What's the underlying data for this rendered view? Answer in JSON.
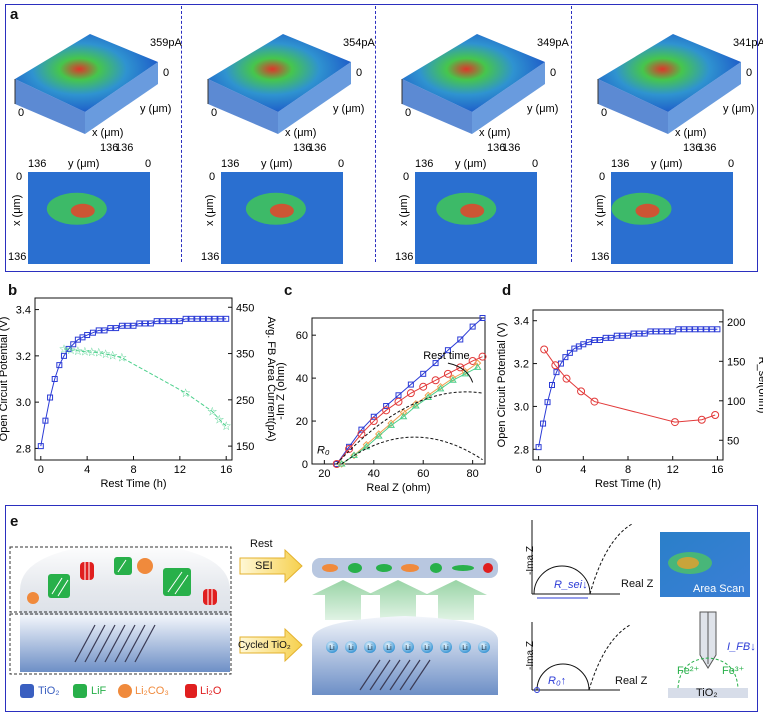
{
  "figure": {
    "panel_labels": [
      "a",
      "b",
      "c",
      "d",
      "e"
    ]
  },
  "panel_a": {
    "scans": [
      {
        "current_label": "359pA",
        "axis_x": "x (μm)",
        "axis_y": "y (μm)",
        "t0": "0",
        "t136a": "136",
        "t136b": "136",
        "tz": "0",
        "map_top_left": "136",
        "map_top_mid": "y (μm)",
        "map_top_right": "0",
        "map_left_top": "0",
        "map_left_mid": "x (μm)",
        "map_left_bot": "136"
      },
      {
        "current_label": "354pA",
        "axis_x": "x (μm)",
        "axis_y": "y (μm)",
        "t0": "0",
        "t136a": "136",
        "t136b": "136",
        "tz": "0",
        "map_top_left": "136",
        "map_top_mid": "y (μm)",
        "map_top_right": "0",
        "map_left_top": "0",
        "map_left_mid": "x (μm)",
        "map_left_bot": "136"
      },
      {
        "current_label": "349pA",
        "axis_x": "x (μm)",
        "axis_y": "y (μm)",
        "t0": "0",
        "t136a": "136",
        "t136b": "136",
        "tz": "0",
        "map_top_left": "136",
        "map_top_mid": "y (μm)",
        "map_top_right": "0",
        "map_left_top": "0",
        "map_left_mid": "x (μm)",
        "map_left_bot": "136"
      },
      {
        "current_label": "341pA",
        "axis_x": "x (μm)",
        "axis_y": "y (μm)",
        "t0": "0",
        "t136a": "136",
        "t136b": "136",
        "tz": "0",
        "map_top_left": "136",
        "map_top_mid": "y (μm)",
        "map_top_right": "0",
        "map_left_top": "0",
        "map_left_mid": "x (μm)",
        "map_left_bot": "136"
      }
    ]
  },
  "chart_data": [
    {
      "panel": "b",
      "type": "line",
      "xlabel": "Rest Time (h)",
      "ylabel": "Open Circuit Potential (V)",
      "y2label": "Avg. FB Area Current(pA)",
      "xlim": [
        -0.5,
        16.5
      ],
      "ylim": [
        2.75,
        3.45
      ],
      "y2lim": [
        120,
        470
      ],
      "xticks": [
        "0",
        "4",
        "8",
        "12",
        "16"
      ],
      "yticks": [
        "2.8",
        "3.0",
        "3.2",
        "3.4"
      ],
      "y2ticks": [
        "150",
        "250",
        "350",
        "450"
      ],
      "series": [
        {
          "axis": "left",
          "color": "#2b3bd6",
          "marker": "square",
          "x": [
            0,
            0.4,
            0.8,
            1.2,
            1.6,
            2.0,
            2.4,
            2.8,
            3.2,
            3.6,
            4.0,
            4.5,
            5.0,
            5.5,
            6.0,
            6.5,
            7.0,
            7.5,
            8.0,
            8.5,
            9.0,
            9.5,
            10.0,
            10.5,
            11.0,
            11.5,
            12.0,
            12.5,
            13.0,
            13.5,
            14.0,
            14.5,
            15.0,
            15.5,
            16.0
          ],
          "y": [
            2.81,
            2.92,
            3.02,
            3.1,
            3.16,
            3.2,
            3.23,
            3.25,
            3.27,
            3.28,
            3.29,
            3.3,
            3.31,
            3.31,
            3.32,
            3.32,
            3.33,
            3.33,
            3.33,
            3.34,
            3.34,
            3.34,
            3.35,
            3.35,
            3.35,
            3.35,
            3.35,
            3.36,
            3.36,
            3.36,
            3.36,
            3.36,
            3.36,
            3.36,
            3.36
          ]
        },
        {
          "axis": "right",
          "color": "#4cd08c",
          "marker": "star",
          "x": [
            2.0,
            2.6,
            3.2,
            3.8,
            4.4,
            5.0,
            5.6,
            6.2,
            7.0,
            12.5,
            14.8,
            15.4,
            16.0
          ],
          "y": [
            360,
            358,
            356,
            354,
            353,
            352,
            349,
            346,
            341,
            265,
            225,
            208,
            193
          ]
        }
      ]
    },
    {
      "panel": "c",
      "type": "scatter",
      "xlabel": "Real Z (ohm)",
      "ylabel": "-Im Z (ohm)",
      "xlim": [
        15,
        85
      ],
      "ylim": [
        0,
        68
      ],
      "xticks": [
        "20",
        "40",
        "60",
        "80"
      ],
      "yticks": [
        "0",
        "20",
        "40",
        "60"
      ],
      "annotations": [
        "Rest time",
        "R₀"
      ],
      "series": [
        {
          "color": "#2b3bd6",
          "marker": "square",
          "x": [
            25,
            30,
            35,
            40,
            45,
            50,
            55,
            60,
            65,
            70,
            75,
            80,
            84
          ],
          "y": [
            0,
            8,
            16,
            22,
            27,
            32,
            37,
            42,
            47,
            53,
            58,
            64,
            68
          ]
        },
        {
          "color": "#e23a3a",
          "marker": "circle",
          "x": [
            25,
            30,
            35,
            40,
            45,
            50,
            55,
            60,
            65,
            70,
            75,
            80,
            84
          ],
          "y": [
            0,
            7,
            14,
            20,
            25,
            29,
            33,
            36,
            39,
            42,
            45,
            48,
            50
          ]
        },
        {
          "color": "#f0a050",
          "marker": "diamond",
          "x": [
            27,
            32,
            37,
            42,
            47,
            52,
            57,
            62,
            67,
            72,
            77,
            82
          ],
          "y": [
            0,
            4,
            9,
            14,
            19,
            24,
            28,
            32,
            36,
            40,
            43,
            47
          ]
        },
        {
          "color": "#4cd08c",
          "marker": "triangle",
          "x": [
            27,
            32,
            37,
            42,
            47,
            52,
            57,
            62,
            67,
            72,
            77,
            82
          ],
          "y": [
            0,
            4,
            8,
            13,
            18,
            22,
            27,
            31,
            35,
            39,
            42,
            45
          ]
        }
      ]
    },
    {
      "panel": "d",
      "type": "line",
      "xlabel": "Rest Time (h)",
      "ylabel": "Open Circuit Potential (V)",
      "y2label": "R_sei(ohm)",
      "xlim": [
        -0.5,
        16.5
      ],
      "ylim": [
        2.75,
        3.45
      ],
      "y2lim": [
        25,
        215
      ],
      "xticks": [
        "0",
        "4",
        "8",
        "12",
        "16"
      ],
      "yticks": [
        "2.8",
        "3.0",
        "3.2",
        "3.4"
      ],
      "y2ticks": [
        "50",
        "100",
        "150",
        "200"
      ],
      "series": [
        {
          "axis": "left",
          "color": "#2b3bd6",
          "marker": "square",
          "x": [
            0,
            0.4,
            0.8,
            1.2,
            1.6,
            2.0,
            2.4,
            2.8,
            3.2,
            3.6,
            4.0,
            4.5,
            5.0,
            5.5,
            6.0,
            6.5,
            7.0,
            7.5,
            8.0,
            8.5,
            9.0,
            9.5,
            10.0,
            10.5,
            11.0,
            11.5,
            12.0,
            12.5,
            13.0,
            13.5,
            14.0,
            14.5,
            15.0,
            15.5,
            16.0
          ],
          "y": [
            2.81,
            2.92,
            3.02,
            3.1,
            3.16,
            3.2,
            3.23,
            3.25,
            3.27,
            3.28,
            3.29,
            3.3,
            3.31,
            3.31,
            3.32,
            3.32,
            3.33,
            3.33,
            3.33,
            3.34,
            3.34,
            3.34,
            3.35,
            3.35,
            3.35,
            3.35,
            3.35,
            3.36,
            3.36,
            3.36,
            3.36,
            3.36,
            3.36,
            3.36,
            3.36
          ]
        },
        {
          "axis": "right",
          "color": "#e23a3a",
          "marker": "circle",
          "x": [
            0.5,
            1.5,
            2.5,
            3.8,
            5.0,
            12.2,
            14.6,
            15.8
          ],
          "y": [
            165,
            145,
            128,
            112,
            99,
            73,
            76,
            82
          ]
        }
      ]
    }
  ],
  "panel_e": {
    "rest_label": "Rest",
    "sei_label": "SEI",
    "cycled_label": "Cycled TiO₂",
    "li_label": "Li",
    "legend": [
      {
        "text": "TiO₂",
        "color": "#3a5fc0"
      },
      {
        "text": "LiF",
        "color": "#28b04a"
      },
      {
        "text": "Li₂CO₃",
        "color": "#f08a3c"
      },
      {
        "text": "Li₂O",
        "color": "#e01f1f"
      }
    ],
    "nyquist_top": {
      "ylabel": "-Ima Z",
      "xlabel": "Real Z",
      "annot": "R_sei↓"
    },
    "nyquist_bottom": {
      "ylabel": "-Ima Z",
      "xlabel": "Real Z",
      "annot": "R₀↑"
    },
    "area_scan_label": "Area Scan",
    "ifb_label": "I_FB↓",
    "fe2": "Fe²⁺",
    "fe3": "Fe³⁺",
    "tio2_label": "TiO₂"
  }
}
